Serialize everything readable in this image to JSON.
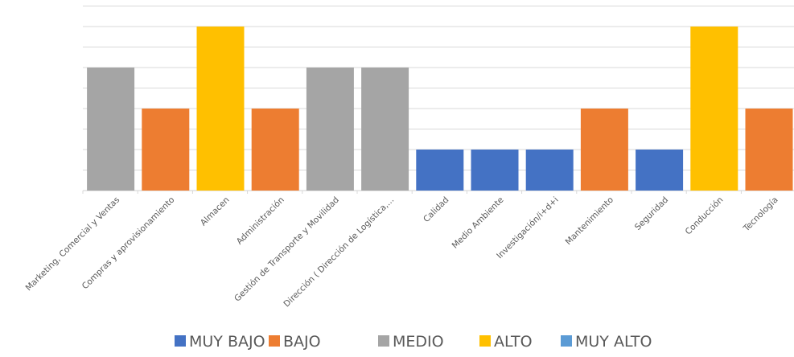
{
  "chart_data": {
    "type": "bar",
    "categories": [
      "Marketing, Comercial y Ventas",
      "Compras y aprovisionamiento",
      "Almacen",
      "Administración",
      "Gestión de Transporte y Movilidad",
      "Dirección ( Dirección de Logística,...",
      "Calidad",
      "Medio Ambiente",
      "Investigación/i+d+i",
      "Mantenimiento",
      "Seguridad",
      "Conducción",
      "Tecnología"
    ],
    "values": [
      3,
      2,
      4,
      2,
      3,
      3,
      1,
      1,
      1,
      2,
      1,
      4,
      2
    ],
    "value_levels": [
      "MEDIO",
      "BAJO",
      "ALTO",
      "BAJO",
      "MEDIO",
      "MEDIO",
      "MUY BAJO",
      "MUY BAJO",
      "MUY BAJO",
      "BAJO",
      "MUY BAJO",
      "ALTO",
      "BAJO"
    ],
    "ylim": [
      0,
      4.5
    ],
    "grid": true,
    "legend_position": "bottom",
    "legend": [
      {
        "name": "MUY BAJO",
        "color": "#4472C4"
      },
      {
        "name": "BAJO",
        "color": "#ED7D31"
      },
      {
        "name": "MEDIO",
        "color": "#A5A5A5"
      },
      {
        "name": "ALTO",
        "color": "#FFC000"
      },
      {
        "name": "MUY ALTO",
        "color": "#5B9BD5"
      }
    ],
    "gridline_color": "#D9D9D9",
    "label_color": "#595959"
  }
}
